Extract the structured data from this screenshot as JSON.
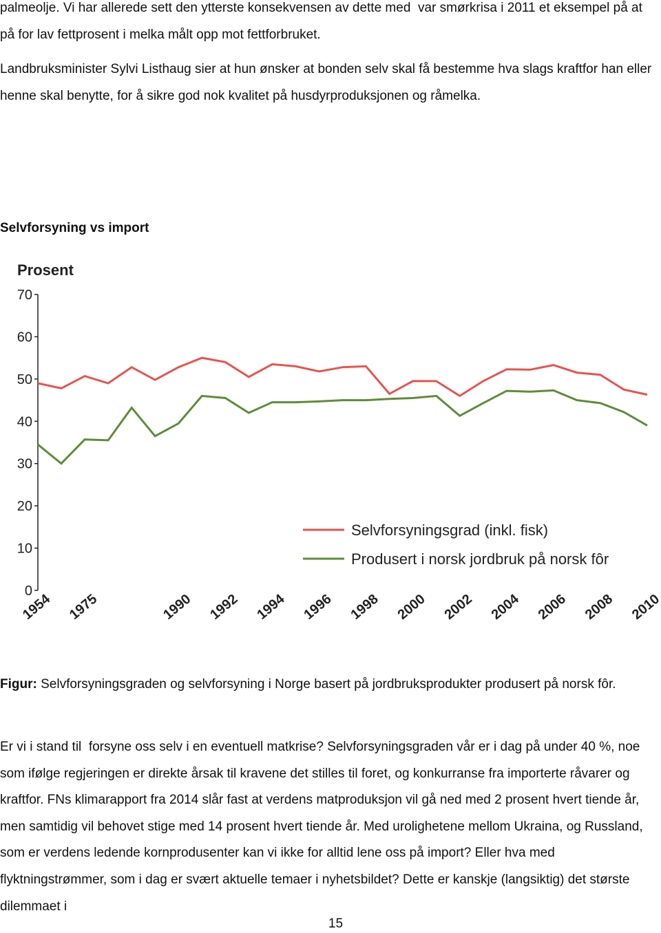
{
  "paragraphs_before": [
    "palmeolje. Vi har allerede sett den ytterste konsekvensen av dette med  var smørkrisa i 2011 et eksempel på at på for lav fettprosent i melka målt opp mot fettforbruket.",
    "Landbruksminister Sylvi Listhaug sier at hun ønsker at bonden selv skal få bestemme hva slags kraftfor han eller henne skal benytte, for å sikre god nok kvalitet på husdyrproduksjonen og råmelka."
  ],
  "heading": "Selvforsyning vs import",
  "chart_data": {
    "type": "line",
    "y_label": "Prosent",
    "categories": [
      "1954",
      null,
      "1975",
      null,
      null,
      null,
      "1990",
      null,
      "1992",
      null,
      "1994",
      null,
      "1996",
      null,
      "1998",
      null,
      "2000",
      null,
      "2002",
      null,
      "2004",
      null,
      "2006",
      null,
      "2008",
      null,
      "2010"
    ],
    "series": [
      {
        "name": "Selvforsyningsgrad (inkl. fisk)",
        "color": "#e8534f",
        "values": [
          49,
          47.8,
          50.7,
          49,
          52.8,
          49.8,
          52.8,
          55,
          54,
          50.5,
          53.5,
          53,
          51.8,
          52.8,
          53,
          46.5,
          49.5,
          49.5,
          46,
          49.5,
          52.3,
          52.2,
          53.3,
          51.5,
          51,
          47.5,
          46.3
        ]
      },
      {
        "name": "Produsert i norsk jordbruk på norsk fôr",
        "color": "#5e8c3a",
        "values": [
          34.5,
          30,
          35.7,
          35.5,
          43.2,
          36.5,
          39.5,
          46,
          45.5,
          42,
          44.5,
          44.5,
          44.7,
          45,
          45,
          45.3,
          45.5,
          46,
          41.3,
          44.3,
          47.2,
          47,
          47.3,
          45,
          44.3,
          42.2,
          39
        ]
      }
    ],
    "ylim": [
      0,
      70
    ],
    "yticks": [
      0,
      10,
      20,
      30,
      40,
      50,
      60,
      70
    ],
    "legend": "lower-right"
  },
  "caption": {
    "label": "Figur:",
    "text": "Selvforsyningsgraden og selvforsyning i Norge basert på jordbruksprodukter produsert på norsk fôr."
  },
  "paragraphs_after": [
    "Er vi i stand til  forsyne oss selv i en eventuell matkrise? Selvforsyningsgraden vår er i dag på under 40 %, noe som ifølge regjeringen er direkte årsak til kravene det stilles til foret, og konkurranse fra importerte råvarer og kraftfor. FNs klimarapport fra 2014 slår fast at verdens matproduksjon vil gå ned med 2 prosent hvert tiende år, men samtidig vil behovet stige med 14 prosent hvert tiende år. Med urolighetene mellom Ukraina, og Russland, som er verdens ledende kornprodusenter kan vi ikke for alltid lene oss på import? Eller hva med flyktningstrømmer, som i dag er svært aktuelle temaer i nyhetsbildet? Dette er kanskje (langsiktig) det største dilemmaet i"
  ],
  "page_number": "15"
}
